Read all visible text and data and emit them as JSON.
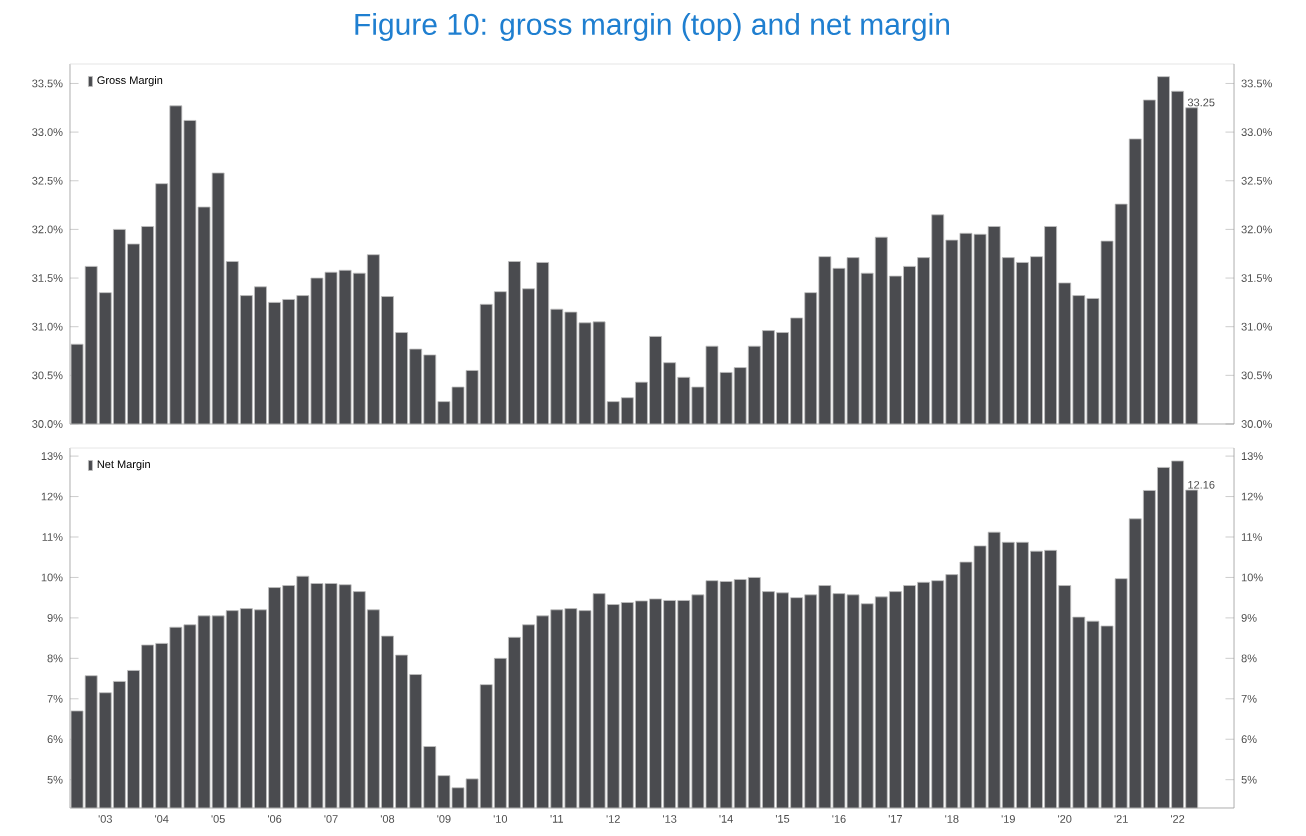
{
  "chart_data": [
    {
      "type": "bar",
      "title": "Figure 10: gross margin (top) and net margin",
      "legend": "top left",
      "tick_labels": "y",
      "categories": [
        null,
        null,
        null,
        null,
        null,
        null,
        null,
        null,
        null,
        null,
        null,
        null,
        null,
        null,
        null,
        null,
        null,
        null,
        null,
        null,
        null,
        null,
        null,
        null,
        null,
        null,
        null,
        null,
        null,
        null,
        null,
        null,
        null,
        null,
        null,
        null,
        null,
        null,
        null,
        null,
        null,
        null,
        null,
        null,
        null,
        null,
        null,
        null,
        null,
        null,
        null,
        null,
        null,
        null,
        null,
        null,
        null,
        null,
        null,
        null,
        null,
        null,
        null,
        null,
        null,
        null,
        null,
        null,
        null,
        null,
        null,
        null,
        null,
        null,
        null,
        null,
        null,
        null,
        null,
        null
      ],
      "ylim": [
        30.0,
        33.7
      ],
      "yticks": [
        {
          "value": 30.0,
          "label": "30.0%"
        },
        {
          "value": 30.5,
          "label": "30.5%"
        },
        {
          "value": 31.0,
          "label": "31.0%"
        },
        {
          "value": 31.5,
          "label": "31.5%"
        },
        {
          "value": 32.0,
          "label": "32.0%"
        },
        {
          "value": 32.5,
          "label": "32.5%"
        },
        {
          "value": 33.0,
          "label": "33.0%"
        },
        {
          "value": 33.5,
          "label": "33.5%"
        }
      ],
      "y2lim": [
        30.0,
        33.7
      ],
      "y2ticks": [
        {
          "value": 30.0,
          "label": "30.0%"
        },
        {
          "value": 30.5,
          "label": "30.5%"
        },
        {
          "value": 31.0,
          "label": "31.0%"
        },
        {
          "value": 31.5,
          "label": "31.5%"
        },
        {
          "value": 32.0,
          "label": "32.0%"
        },
        {
          "value": 32.5,
          "label": "32.5%"
        },
        {
          "value": 33.0,
          "label": "33.0%"
        },
        {
          "value": 33.5,
          "label": "33.5%"
        }
      ],
      "series": [
        {
          "name": "Gross Margin",
          "color": "#4a4b4f",
          "values": [
            30.82,
            31.62,
            31.35,
            32.0,
            31.85,
            32.03,
            32.47,
            33.27,
            33.12,
            32.23,
            32.58,
            31.67,
            31.32,
            31.41,
            31.25,
            31.28,
            31.32,
            31.5,
            31.56,
            31.58,
            31.55,
            31.74,
            31.31,
            30.94,
            30.77,
            30.71,
            30.23,
            30.38,
            30.55,
            31.23,
            31.36,
            31.67,
            31.39,
            31.66,
            31.18,
            31.15,
            31.04,
            31.05,
            30.23,
            30.27,
            30.43,
            30.9,
            30.63,
            30.48,
            30.38,
            30.8,
            30.53,
            30.58,
            30.8,
            30.96,
            30.94,
            31.09,
            31.35,
            31.72,
            31.6,
            31.71,
            31.55,
            31.92,
            31.52,
            31.62,
            31.71,
            32.15,
            31.89,
            31.96,
            31.95,
            32.03,
            31.71,
            31.66,
            31.72,
            32.03,
            31.45,
            31.32,
            31.29,
            31.88,
            32.26,
            32.93,
            33.33,
            33.57,
            33.42,
            33.25
          ],
          "value_labels": [
            null,
            null,
            null,
            null,
            null,
            null,
            null,
            null,
            null,
            null,
            null,
            null,
            null,
            null,
            null,
            null,
            null,
            null,
            null,
            null,
            null,
            null,
            null,
            null,
            null,
            null,
            null,
            null,
            null,
            null,
            null,
            null,
            null,
            null,
            null,
            null,
            null,
            null,
            null,
            null,
            null,
            null,
            null,
            null,
            null,
            null,
            null,
            null,
            null,
            null,
            null,
            null,
            null,
            null,
            null,
            null,
            null,
            null,
            null,
            null,
            null,
            null,
            null,
            null,
            null,
            null,
            null,
            null,
            null,
            null,
            null,
            null,
            null,
            null,
            null,
            null,
            null,
            null,
            null,
            "33.25"
          ]
        }
      ]
    },
    {
      "type": "bar",
      "legend": "top left",
      "categories": [
        null,
        null,
        "'03",
        null,
        null,
        null,
        "'04",
        null,
        null,
        null,
        "'05",
        null,
        null,
        null,
        "'06",
        null,
        null,
        null,
        "'07",
        null,
        null,
        null,
        "'08",
        null,
        null,
        null,
        "'09",
        null,
        null,
        null,
        "'10",
        null,
        null,
        null,
        "'11",
        null,
        null,
        null,
        "'12",
        null,
        null,
        null,
        "'13",
        null,
        null,
        null,
        "'14",
        null,
        null,
        null,
        "'15",
        null,
        null,
        null,
        "'16",
        null,
        null,
        null,
        "'17",
        null,
        null,
        null,
        "'18",
        null,
        null,
        null,
        "'19",
        null,
        null,
        null,
        "'20",
        null,
        null,
        null,
        "'21",
        null,
        null,
        null,
        "'22",
        null
      ],
      "ylim": [
        4.3,
        13.2
      ],
      "yticks": [
        {
          "value": 5,
          "label": "5%"
        },
        {
          "value": 6,
          "label": "6%"
        },
        {
          "value": 7,
          "label": "7%"
        },
        {
          "value": 8,
          "label": "8%"
        },
        {
          "value": 9,
          "label": "9%"
        },
        {
          "value": 10,
          "label": "10%"
        },
        {
          "value": 11,
          "label": "11%"
        },
        {
          "value": 12,
          "label": "12%"
        },
        {
          "value": 13,
          "label": "13%"
        }
      ],
      "y2lim": [
        4.3,
        13.2
      ],
      "y2ticks": [
        {
          "value": 5,
          "label": "5%"
        },
        {
          "value": 6,
          "label": "6%"
        },
        {
          "value": 7,
          "label": "7%"
        },
        {
          "value": 8,
          "label": "8%"
        },
        {
          "value": 9,
          "label": "9%"
        },
        {
          "value": 10,
          "label": "10%"
        },
        {
          "value": 11,
          "label": "11%"
        },
        {
          "value": 12,
          "label": "12%"
        },
        {
          "value": 13,
          "label": "13%"
        }
      ],
      "series": [
        {
          "name": "Net Margin",
          "color": "#4a4b4f",
          "values": [
            6.7,
            7.57,
            7.15,
            7.43,
            7.7,
            8.33,
            8.37,
            8.77,
            8.83,
            9.05,
            9.05,
            9.18,
            9.23,
            9.2,
            9.75,
            9.8,
            10.03,
            9.85,
            9.85,
            9.82,
            9.65,
            9.2,
            8.55,
            8.08,
            7.6,
            5.82,
            5.1,
            4.8,
            5.02,
            7.35,
            8.0,
            8.52,
            8.83,
            9.05,
            9.2,
            9.23,
            9.18,
            9.6,
            9.33,
            9.38,
            9.42,
            9.47,
            9.43,
            9.43,
            9.57,
            9.92,
            9.9,
            9.95,
            10.0,
            9.65,
            9.62,
            9.5,
            9.57,
            9.8,
            9.6,
            9.57,
            9.35,
            9.52,
            9.65,
            9.8,
            9.88,
            9.92,
            10.07,
            10.38,
            10.78,
            11.12,
            10.87,
            10.87,
            10.65,
            10.67,
            9.8,
            9.02,
            8.92,
            8.8,
            9.97,
            11.45,
            12.15,
            12.72,
            12.88,
            12.16
          ],
          "value_labels": [
            null,
            null,
            null,
            null,
            null,
            null,
            null,
            null,
            null,
            null,
            null,
            null,
            null,
            null,
            null,
            null,
            null,
            null,
            null,
            null,
            null,
            null,
            null,
            null,
            null,
            null,
            null,
            null,
            null,
            null,
            null,
            null,
            null,
            null,
            null,
            null,
            null,
            null,
            null,
            null,
            null,
            null,
            null,
            null,
            null,
            null,
            null,
            null,
            null,
            null,
            null,
            null,
            null,
            null,
            null,
            null,
            null,
            null,
            null,
            null,
            null,
            null,
            null,
            null,
            null,
            null,
            null,
            null,
            null,
            null,
            null,
            null,
            null,
            null,
            null,
            null,
            null,
            null,
            null,
            "12.16"
          ]
        }
      ]
    }
  ]
}
